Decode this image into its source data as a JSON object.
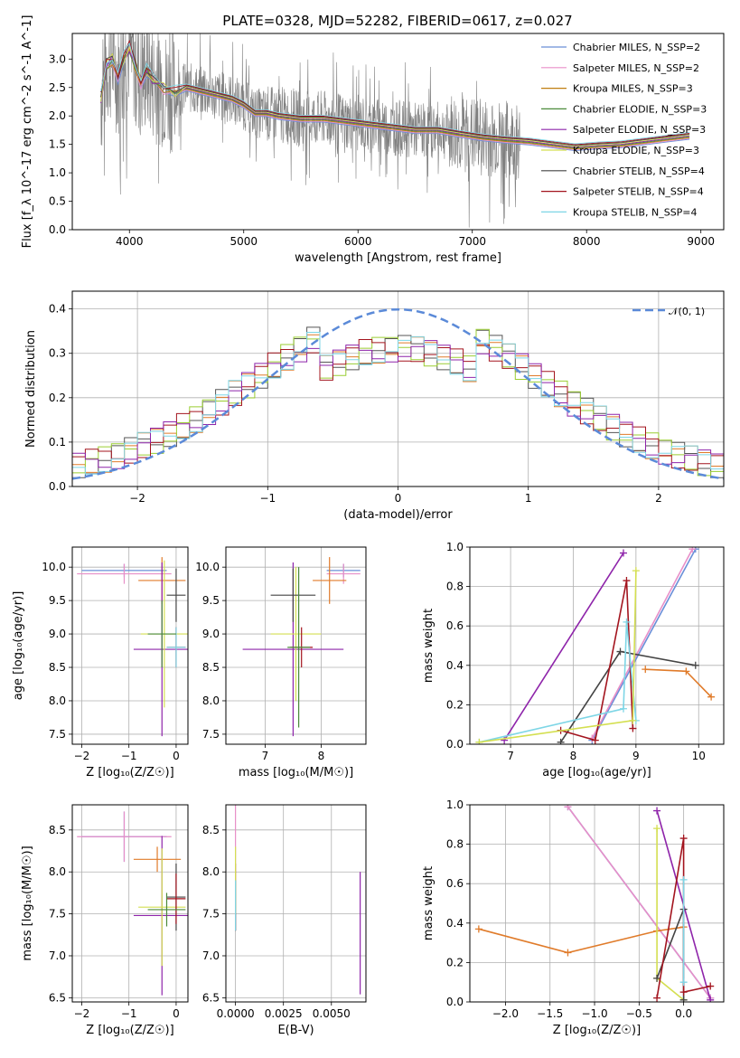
{
  "title": "PLATE=0328, MJD=52282, FIBERID=0617, z=0.027",
  "colors": {
    "data": "#808080",
    "grid": "#b0b0b0",
    "models": [
      "#6a8fd8",
      "#e88fc8",
      "#c07f10",
      "#4b8a3b",
      "#8e24aa",
      "#d4df50",
      "#444444",
      "#a3141e",
      "#7ed6e6"
    ],
    "hist": [
      "#e07b2a",
      "#555555",
      "#9acd32",
      "#a3141e",
      "#8e24aa",
      "#7ed6e6"
    ],
    "gauss": "#5b8ad8",
    "age": "#e07b2a",
    "z": "#e07b2a"
  },
  "chart_data": [
    {
      "type": "line",
      "id": "spectrum",
      "title": "PLATE=0328, MJD=52282, FIBERID=0617, z=0.027",
      "xlabel": "wavelength [Angstrom, rest frame]",
      "ylabel": "Flux [f_λ 10^-17 erg cm^-2 s^-1 A^-1]",
      "xlim": [
        3500,
        9200
      ],
      "ylim": [
        0,
        3.45
      ],
      "xticks": [
        "4000",
        "5000",
        "6000",
        "7000",
        "8000",
        "9000"
      ],
      "yticks": [
        "0.0",
        "0.5",
        "1.0",
        "1.5",
        "2.0",
        "2.5",
        "3.0"
      ],
      "legend": [
        "Chabrier MILES, N_SSP=2",
        "Salpeter MILES, N_SSP=2",
        "Kroupa MILES, N_SSP=3",
        "Chabrier ELODIE, N_SSP=3",
        "Salpeter ELODIE, N_SSP=3",
        "Kroupa ELODIE, N_SSP=3",
        "Chabrier STELIB, N_SSP=4",
        "Salpeter STELIB, N_SSP=4",
        "Kroupa STELIB, N_SSP=4"
      ],
      "model_x": [
        3750,
        3800,
        3850,
        3900,
        3950,
        4000,
        4050,
        4100,
        4150,
        4200,
        4300,
        4400,
        4500,
        4600,
        4700,
        4800,
        4900,
        5000,
        5100,
        5200,
        5300,
        5500,
        5700,
        5900,
        6100,
        6300,
        6500,
        6700,
        6900,
        7100,
        7300,
        7500,
        7700,
        7900,
        8100,
        8300,
        8500,
        8700,
        8900
      ],
      "model_y": [
        2.3,
        2.9,
        3.0,
        2.7,
        3.0,
        3.2,
        2.9,
        2.6,
        2.8,
        2.65,
        2.5,
        2.4,
        2.5,
        2.45,
        2.4,
        2.35,
        2.3,
        2.2,
        2.05,
        2.05,
        2.0,
        1.95,
        1.95,
        1.9,
        1.85,
        1.8,
        1.75,
        1.75,
        1.68,
        1.62,
        1.58,
        1.55,
        1.5,
        1.45,
        1.48,
        1.5,
        1.55,
        1.6,
        1.65
      ]
    },
    {
      "type": "bar",
      "id": "residuals",
      "xlabel": "(data-model)/error",
      "ylabel": "Normed distribution",
      "xlim": [
        -2.5,
        2.5
      ],
      "ylim": [
        0,
        0.44
      ],
      "xticks": [
        "−2",
        "−1",
        "0",
        "1",
        "2"
      ],
      "yticks": [
        "0.0",
        "0.1",
        "0.2",
        "0.3",
        "0.4"
      ],
      "legend": [
        "𝒩(0, 1)"
      ],
      "bin_width": 0.1
    },
    {
      "type": "scatter",
      "id": "age_vs_Z",
      "xlabel": "Z [log₁₀(Z/Z☉)]",
      "ylabel": "age  [log₁₀(age/yr)]",
      "xlim": [
        -2.2,
        0.25
      ],
      "ylim": [
        7.35,
        10.3
      ],
      "xticks": [
        "−2",
        "−1",
        "0"
      ],
      "yticks": [
        "7.5",
        "8.0",
        "8.5",
        "9.0",
        "9.5",
        "10.0"
      ],
      "points": [
        {
          "x": -1.1,
          "y": 9.95,
          "xerr": 0.9,
          "yerr": 0.1,
          "color": "#6a8fd8"
        },
        {
          "x": -1.1,
          "y": 9.9,
          "xerr": 1.0,
          "yerr": 0.15,
          "color": "#e88fc8"
        },
        {
          "x": -0.3,
          "y": 9.8,
          "xerr": 0.5,
          "yerr": 0.35,
          "color": "#e07b2a"
        },
        {
          "x": -0.3,
          "y": 8.77,
          "xerr": 0.6,
          "yerr": 1.3,
          "color": "#8e24aa"
        },
        {
          "x": -0.25,
          "y": 9.0,
          "xerr": 0.5,
          "yerr": 1.1,
          "color": "#d4df50"
        },
        {
          "x": 0.0,
          "y": 9.58,
          "xerr": 0.2,
          "yerr": 0.4,
          "color": "#444444"
        },
        {
          "x": 0.0,
          "y": 8.8,
          "xerr": 0.2,
          "yerr": 0.3,
          "color": "#a3141e"
        },
        {
          "x": 0.0,
          "y": 8.8,
          "xerr": 0.2,
          "yerr": 0.3,
          "color": "#7ed6e6"
        },
        {
          "x": -0.3,
          "y": 9.0,
          "xerr": 0.3,
          "yerr": 0.5,
          "color": "#4b8a3b"
        }
      ]
    },
    {
      "type": "scatter",
      "id": "age_vs_mass",
      "xlabel": "mass [log₁₀(M/M☉)]",
      "xlim": [
        6.3,
        8.8
      ],
      "ylim": [
        7.35,
        10.3
      ],
      "xticks": [
        "7",
        "8"
      ],
      "yticks": [
        "7.5",
        "8.0",
        "8.5",
        "9.0",
        "9.5",
        "10.0"
      ],
      "points": [
        {
          "x": 8.4,
          "y": 9.95,
          "xerr": 0.3,
          "yerr": 0.1,
          "color": "#6a8fd8"
        },
        {
          "x": 8.4,
          "y": 9.9,
          "xerr": 0.3,
          "yerr": 0.15,
          "color": "#e88fc8"
        },
        {
          "x": 8.15,
          "y": 9.8,
          "xerr": 0.3,
          "yerr": 0.35,
          "color": "#e07b2a"
        },
        {
          "x": 7.5,
          "y": 8.77,
          "xerr": 0.9,
          "yerr": 1.3,
          "color": "#8e24aa"
        },
        {
          "x": 7.55,
          "y": 9.0,
          "xerr": 0.45,
          "yerr": 1.0,
          "color": "#d4df50"
        },
        {
          "x": 7.5,
          "y": 9.58,
          "xerr": 0.4,
          "yerr": 0.4,
          "color": "#444444"
        },
        {
          "x": 7.65,
          "y": 8.8,
          "xerr": 0.2,
          "yerr": 0.3,
          "color": "#a3141e"
        },
        {
          "x": 7.6,
          "y": 8.8,
          "xerr": 0.2,
          "yerr": 1.2,
          "color": "#4b8a3b"
        }
      ]
    },
    {
      "type": "line",
      "id": "weight_vs_age",
      "xlabel": "age  [log₁₀(age/yr)]",
      "ylabel": "mass weight",
      "xlim": [
        6.35,
        10.4
      ],
      "ylim": [
        0,
        1
      ],
      "xticks": [
        "7",
        "8",
        "9",
        "10"
      ],
      "yticks": [
        "0.0",
        "0.2",
        "0.4",
        "0.6",
        "0.8",
        "1.0"
      ],
      "series": [
        {
          "color": "#8e24aa",
          "x": [
            6.9,
            8.8
          ],
          "y": [
            0.02,
            0.97
          ]
        },
        {
          "color": "#6a8fd8",
          "x": [
            8.3,
            9.95
          ],
          "y": [
            0.02,
            0.99
          ]
        },
        {
          "color": "#e88fc8",
          "x": [
            8.3,
            9.9
          ],
          "y": [
            0.03,
            0.99
          ]
        },
        {
          "color": "#e07b2a",
          "x": [
            9.15,
            9.8,
            10.2
          ],
          "y": [
            0.38,
            0.37,
            0.24
          ]
        },
        {
          "color": "#444444",
          "x": [
            7.8,
            8.75,
            9.95
          ],
          "y": [
            0.01,
            0.47,
            0.4
          ]
        },
        {
          "color": "#a3141e",
          "x": [
            7.8,
            8.35,
            8.85,
            8.95
          ],
          "y": [
            0.07,
            0.02,
            0.83,
            0.08
          ]
        },
        {
          "color": "#7ed6e6",
          "x": [
            6.5,
            8.8,
            8.85,
            9.0
          ],
          "y": [
            0.01,
            0.18,
            0.62,
            0.12
          ]
        },
        {
          "color": "#d4df50",
          "x": [
            6.5,
            8.95,
            9.0
          ],
          "y": [
            0.01,
            0.12,
            0.88
          ]
        }
      ]
    },
    {
      "type": "scatter",
      "id": "mass_vs_Z",
      "xlabel": "Z [log₁₀(Z/Z☉)]",
      "ylabel": "mass [log₁₀(M/M☉)]",
      "xlim": [
        -2.2,
        0.25
      ],
      "ylim": [
        6.45,
        8.8
      ],
      "xticks": [
        "−2",
        "−1",
        "0"
      ],
      "yticks": [
        "6.5",
        "7.0",
        "7.5",
        "8.0",
        "8.5"
      ],
      "points": [
        {
          "x": -1.1,
          "y": 8.42,
          "xerr": 0.9,
          "yerr": 0.3,
          "color": "#6a8fd8"
        },
        {
          "x": -1.1,
          "y": 8.42,
          "xerr": 1.0,
          "yerr": 0.3,
          "color": "#e88fc8"
        },
        {
          "x": -0.4,
          "y": 8.15,
          "xerr": 0.5,
          "yerr": 0.15,
          "color": "#e07b2a"
        },
        {
          "x": -0.3,
          "y": 7.48,
          "xerr": 0.6,
          "yerr": 0.95,
          "color": "#8e24aa"
        },
        {
          "x": -0.3,
          "y": 7.58,
          "xerr": 0.5,
          "yerr": 0.7,
          "color": "#d4df50"
        },
        {
          "x": 0.0,
          "y": 7.7,
          "xerr": 0.2,
          "yerr": 0.4,
          "color": "#444444"
        },
        {
          "x": 0.0,
          "y": 7.68,
          "xerr": 0.2,
          "yerr": 0.3,
          "color": "#a3141e"
        },
        {
          "x": -0.2,
          "y": 7.55,
          "xerr": 0.4,
          "yerr": 0.2,
          "color": "#4b8a3b"
        }
      ]
    },
    {
      "type": "scatter",
      "id": "mass_vs_ebv",
      "xlabel": "E(B-V)",
      "xlim": [
        -0.0005,
        0.0068
      ],
      "ylim": [
        6.45,
        8.8
      ],
      "xticks": [
        "0.0000",
        "0.0025",
        "0.0050"
      ],
      "yticks": [
        "6.5",
        "7.0",
        "7.5",
        "8.0",
        "8.5"
      ],
      "points": [
        {
          "x": 0.0,
          "y": 8.45,
          "xerr": 0,
          "yerr": 0.35,
          "color": "#e88fc8"
        },
        {
          "x": 0.0,
          "y": 7.6,
          "xerr": 0,
          "yerr": 0.3,
          "color": "#444444"
        },
        {
          "x": 0.0,
          "y": 7.7,
          "xerr": 0,
          "yerr": 0.4,
          "color": "#a3141e"
        },
        {
          "x": 0.0,
          "y": 7.9,
          "xerr": 0,
          "yerr": 0.4,
          "color": "#d4df50"
        },
        {
          "x": 0.0,
          "y": 7.6,
          "xerr": 0,
          "yerr": 0.3,
          "color": "#7ed6e6"
        },
        {
          "x": 0.0065,
          "y": 7.27,
          "xerr": 0,
          "yerr": 0.73,
          "color": "#8e24aa"
        }
      ]
    },
    {
      "type": "line",
      "id": "weight_vs_Z",
      "xlabel": "Z [log₁₀(Z/Z☉)]",
      "ylabel": "mass weight",
      "xlim": [
        -2.4,
        0.45
      ],
      "ylim": [
        0,
        1
      ],
      "xticks": [
        "−2.0",
        "−1.5",
        "−1.0",
        "−0.5",
        "0.0"
      ],
      "yticks": [
        "0.0",
        "0.2",
        "0.4",
        "0.6",
        "0.8",
        "1.0"
      ],
      "series": [
        {
          "color": "#6a8fd8",
          "x": [
            -1.3,
            0.3
          ],
          "y": [
            0.99,
            0.02
          ]
        },
        {
          "color": "#e88fc8",
          "x": [
            -1.3,
            0.3
          ],
          "y": [
            0.99,
            0.02
          ]
        },
        {
          "color": "#e07b2a",
          "x": [
            -2.3,
            -1.3,
            -0.3,
            0.0
          ],
          "y": [
            0.37,
            0.25,
            0.36,
            0.38
          ]
        },
        {
          "color": "#8e24aa",
          "x": [
            -0.3,
            0.3
          ],
          "y": [
            0.97,
            0.01
          ]
        },
        {
          "color": "#d4df50",
          "x": [
            -0.3,
            -0.3,
            0.0
          ],
          "y": [
            0.88,
            0.12,
            0.01
          ]
        },
        {
          "color": "#444444",
          "x": [
            -0.3,
            0.0,
            0.0
          ],
          "y": [
            0.12,
            0.47,
            0.01
          ]
        },
        {
          "color": "#a3141e",
          "x": [
            -0.3,
            0.0,
            0.0,
            0.3
          ],
          "y": [
            0.02,
            0.83,
            0.05,
            0.08
          ]
        },
        {
          "color": "#7ed6e6",
          "x": [
            0.0,
            0.0
          ],
          "y": [
            0.62,
            0.1
          ]
        }
      ]
    }
  ]
}
